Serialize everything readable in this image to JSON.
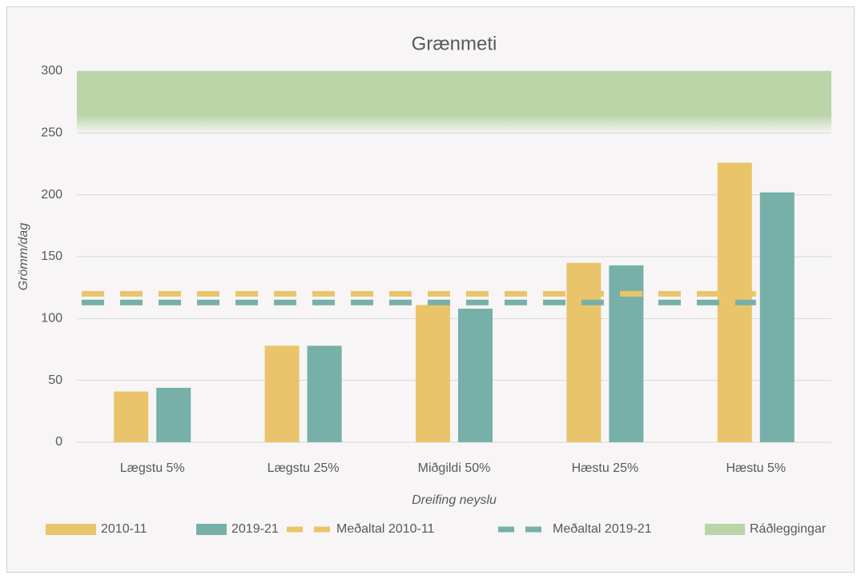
{
  "chart_data": {
    "type": "bar",
    "title": "Grænmeti",
    "x_label": "Dreifing neyslu",
    "y_label": "Grömm/dag",
    "categories": [
      "Lægstu 5%",
      "Lægstu 25%",
      "Miðgildi 50%",
      "Hæstu 25%",
      "Hæstu 5%"
    ],
    "series": [
      {
        "name": "2010-11",
        "color": "#e9c46a",
        "values": [
          41,
          78,
          111,
          145,
          226
        ]
      },
      {
        "name": "2019-21",
        "color": "#76b0a8",
        "values": [
          44,
          78,
          108,
          143,
          202
        ]
      }
    ],
    "averages": [
      {
        "name": "Meðaltal 2010-11",
        "color": "#e9c46a",
        "value": 120
      },
      {
        "name": "Meðaltal 2019-21",
        "color": "#76b0a8",
        "value": 113
      }
    ],
    "band": {
      "name": "Ráðleggingar",
      "color": "#b9d5a8",
      "range": [
        250,
        300
      ]
    },
    "ylim": [
      0,
      300
    ],
    "yticks": [
      0,
      50,
      100,
      150,
      200,
      250,
      300
    ],
    "grid": true
  }
}
